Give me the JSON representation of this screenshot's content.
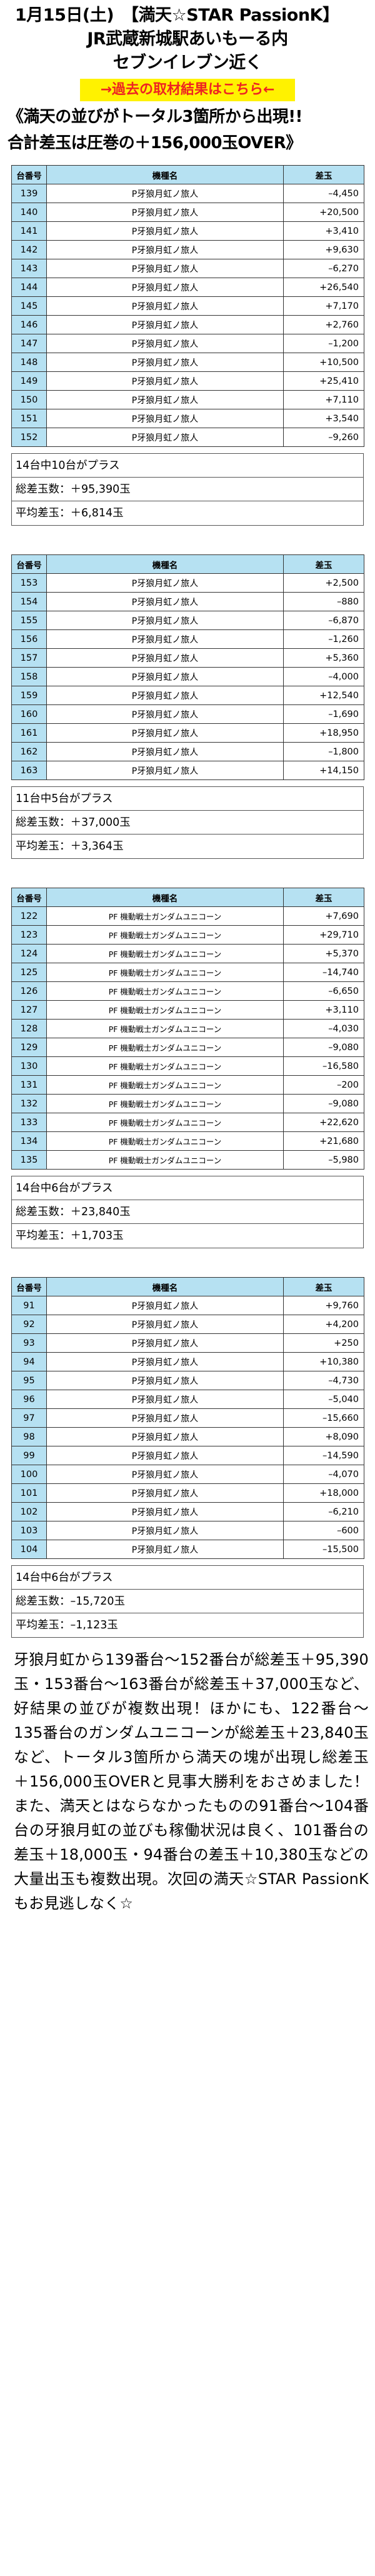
{
  "header": {
    "line1": "1月15日(土)　【満天☆STAR PassionK】",
    "line2": "JR武蔵新城駅あいもーる内",
    "line3": "セブンイレブン近く",
    "link_label": "→過去の取材結果はこちら←",
    "headline1": "《満天の並びがトータル3箇所から出現!!",
    "headline2": "合計差玉は圧巻の＋156,000玉OVER》"
  },
  "columns": {
    "no": "台番号",
    "name": "機種名",
    "diff": "差玉"
  },
  "tables": [
    {
      "rows": [
        {
          "no": "139",
          "name": "P牙狼月虹ノ旅人",
          "diff": "–4,450"
        },
        {
          "no": "140",
          "name": "P牙狼月虹ノ旅人",
          "diff": "+20,500"
        },
        {
          "no": "141",
          "name": "P牙狼月虹ノ旅人",
          "diff": "+3,410"
        },
        {
          "no": "142",
          "name": "P牙狼月虹ノ旅人",
          "diff": "+9,630"
        },
        {
          "no": "143",
          "name": "P牙狼月虹ノ旅人",
          "diff": "–6,270"
        },
        {
          "no": "144",
          "name": "P牙狼月虹ノ旅人",
          "diff": "+26,540"
        },
        {
          "no": "145",
          "name": "P牙狼月虹ノ旅人",
          "diff": "+7,170"
        },
        {
          "no": "146",
          "name": "P牙狼月虹ノ旅人",
          "diff": "+2,760"
        },
        {
          "no": "147",
          "name": "P牙狼月虹ノ旅人",
          "diff": "–1,200"
        },
        {
          "no": "148",
          "name": "P牙狼月虹ノ旅人",
          "diff": "+10,500"
        },
        {
          "no": "149",
          "name": "P牙狼月虹ノ旅人",
          "diff": "+25,410"
        },
        {
          "no": "150",
          "name": "P牙狼月虹ノ旅人",
          "diff": "+7,110"
        },
        {
          "no": "151",
          "name": "P牙狼月虹ノ旅人",
          "diff": "+3,540"
        },
        {
          "no": "152",
          "name": "P牙狼月虹ノ旅人",
          "diff": "–9,260"
        }
      ],
      "summary": {
        "plus": "14台中10台がプラス",
        "total": "総差玉数：＋95,390玉",
        "avg": "平均差玉：＋6,814玉"
      }
    },
    {
      "rows": [
        {
          "no": "153",
          "name": "P牙狼月虹ノ旅人",
          "diff": "+2,500"
        },
        {
          "no": "154",
          "name": "P牙狼月虹ノ旅人",
          "diff": "–880"
        },
        {
          "no": "155",
          "name": "P牙狼月虹ノ旅人",
          "diff": "–6,870"
        },
        {
          "no": "156",
          "name": "P牙狼月虹ノ旅人",
          "diff": "–1,260"
        },
        {
          "no": "157",
          "name": "P牙狼月虹ノ旅人",
          "diff": "+5,360"
        },
        {
          "no": "158",
          "name": "P牙狼月虹ノ旅人",
          "diff": "–4,000"
        },
        {
          "no": "159",
          "name": "P牙狼月虹ノ旅人",
          "diff": "+12,540"
        },
        {
          "no": "160",
          "name": "P牙狼月虹ノ旅人",
          "diff": "–1,690"
        },
        {
          "no": "161",
          "name": "P牙狼月虹ノ旅人",
          "diff": "+18,950"
        },
        {
          "no": "162",
          "name": "P牙狼月虹ノ旅人",
          "diff": "–1,800"
        },
        {
          "no": "163",
          "name": "P牙狼月虹ノ旅人",
          "diff": "+14,150"
        }
      ],
      "summary": {
        "plus": "11台中5台がプラス",
        "total": "総差玉数：＋37,000玉",
        "avg": "平均差玉：＋3,364玉"
      }
    },
    {
      "rows": [
        {
          "no": "122",
          "name": "PF 機動戦士ガンダムユニコーン",
          "diff": "+7,690"
        },
        {
          "no": "123",
          "name": "PF 機動戦士ガンダムユニコーン",
          "diff": "+29,710"
        },
        {
          "no": "124",
          "name": "PF 機動戦士ガンダムユニコーン",
          "diff": "+5,370"
        },
        {
          "no": "125",
          "name": "PF 機動戦士ガンダムユニコーン",
          "diff": "–14,740"
        },
        {
          "no": "126",
          "name": "PF 機動戦士ガンダムユニコーン",
          "diff": "–6,650"
        },
        {
          "no": "127",
          "name": "PF 機動戦士ガンダムユニコーン",
          "diff": "+3,110"
        },
        {
          "no": "128",
          "name": "PF 機動戦士ガンダムユニコーン",
          "diff": "–4,030"
        },
        {
          "no": "129",
          "name": "PF 機動戦士ガンダムユニコーン",
          "diff": "–9,080"
        },
        {
          "no": "130",
          "name": "PF 機動戦士ガンダムユニコーン",
          "diff": "–16,580"
        },
        {
          "no": "131",
          "name": "PF 機動戦士ガンダムユニコーン",
          "diff": "–200"
        },
        {
          "no": "132",
          "name": "PF 機動戦士ガンダムユニコーン",
          "diff": "–9,080"
        },
        {
          "no": "133",
          "name": "PF 機動戦士ガンダムユニコーン",
          "diff": "+22,620"
        },
        {
          "no": "134",
          "name": "PF 機動戦士ガンダムユニコーン",
          "diff": "+21,680"
        },
        {
          "no": "135",
          "name": "PF 機動戦士ガンダムユニコーン",
          "diff": "–5,980"
        }
      ],
      "summary": {
        "plus": "14台中6台がプラス",
        "total": "総差玉数：＋23,840玉",
        "avg": "平均差玉：＋1,703玉"
      }
    },
    {
      "rows": [
        {
          "no": "91",
          "name": "P牙狼月虹ノ旅人",
          "diff": "+9,760"
        },
        {
          "no": "92",
          "name": "P牙狼月虹ノ旅人",
          "diff": "+4,200"
        },
        {
          "no": "93",
          "name": "P牙狼月虹ノ旅人",
          "diff": "+250"
        },
        {
          "no": "94",
          "name": "P牙狼月虹ノ旅人",
          "diff": "+10,380"
        },
        {
          "no": "95",
          "name": "P牙狼月虹ノ旅人",
          "diff": "–4,730"
        },
        {
          "no": "96",
          "name": "P牙狼月虹ノ旅人",
          "diff": "–5,040"
        },
        {
          "no": "97",
          "name": "P牙狼月虹ノ旅人",
          "diff": "–15,660"
        },
        {
          "no": "98",
          "name": "P牙狼月虹ノ旅人",
          "diff": "+8,090"
        },
        {
          "no": "99",
          "name": "P牙狼月虹ノ旅人",
          "diff": "–14,590"
        },
        {
          "no": "100",
          "name": "P牙狼月虹ノ旅人",
          "diff": "–4,070"
        },
        {
          "no": "101",
          "name": "P牙狼月虹ノ旅人",
          "diff": "+18,000"
        },
        {
          "no": "102",
          "name": "P牙狼月虹ノ旅人",
          "diff": "–6,210"
        },
        {
          "no": "103",
          "name": "P牙狼月虹ノ旅人",
          "diff": "–600"
        },
        {
          "no": "104",
          "name": "P牙狼月虹ノ旅人",
          "diff": "–15,500"
        }
      ],
      "summary": {
        "plus": "14台中6台がプラス",
        "total": "総差玉数：–15,720玉",
        "avg": "平均差玉：–1,123玉"
      }
    }
  ],
  "body_text": "牙狼月虹から139番台〜152番台が総差玉＋95,390玉・153番台〜163番台が総差玉＋37,000玉など、好結果の並びが複数出現！ほかにも、122番台〜135番台のガンダムユニコーンが総差玉＋23,840玉など、トータル3箇所から満天の塊が出現し総差玉＋156,000玉OVERと見事大勝利をおさめました！また、満天とはならなかったものの91番台〜104番台の牙狼月虹の並びも稼働状況は良く、101番台の差玉＋18,000玉・94番台の差玉＋10,380玉などの大量出玉も複数出現。次回の満天☆STAR PassionKもお見逃しなく☆",
  "colors": {
    "header_cell": "#b6e1f2",
    "link_bg": "#fff200",
    "link_text": "#ee2222"
  }
}
